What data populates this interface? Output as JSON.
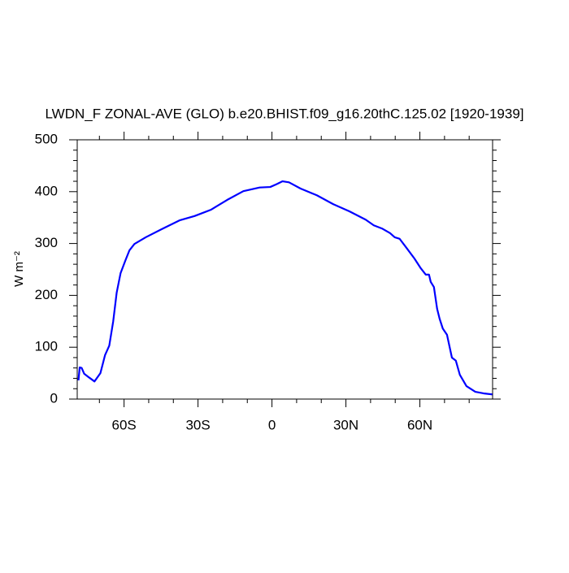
{
  "chart_data": {
    "type": "line",
    "title": "LWDN_F ZONAL-AVE (GLO) b.e20.BHIST.f09_g16.20thC.125.02 [1920-1939]",
    "ylabel": "W m⁻²",
    "series": [
      {
        "color": "#0000ff",
        "x": [
          -78.5,
          -78,
          -77.2,
          -76.2,
          -74.3,
          -72,
          -69.6,
          -67.7,
          -66,
          -64.4,
          -63,
          -61.4,
          -59.4,
          -57.8,
          -55.8,
          -51.2,
          -44.6,
          -37.3,
          -31.4,
          -24.8,
          -18.2,
          -11.6,
          -5,
          -0.7,
          1.7,
          4.3,
          6.9,
          11.6,
          18.2,
          24.8,
          31.4,
          38,
          41.3,
          44.6,
          47.9,
          49.8,
          51.8,
          54.5,
          57.8,
          60.4,
          62.4,
          63.7,
          64.4,
          65.7,
          67,
          68,
          69.3,
          71,
          73,
          74.6,
          76.2,
          78.9,
          82.5,
          85.8,
          89.4
        ],
        "values": [
          36,
          61,
          60,
          49,
          42,
          34,
          50,
          85,
          103,
          150,
          205,
          243,
          268,
          287,
          299,
          312,
          328,
          345,
          353,
          365,
          384,
          401,
          408,
          409,
          414,
          420,
          418,
          406,
          393,
          376,
          362,
          346,
          335,
          329,
          320,
          312,
          309,
          292,
          271,
          252,
          240,
          240,
          226,
          216,
          174,
          155,
          136,
          124,
          80,
          74,
          47,
          25,
          14,
          11,
          9
        ]
      }
    ],
    "xlim": [
      -79,
      89.5
    ],
    "ylim": [
      0,
      500
    ],
    "xticks": [
      {
        "value": -60,
        "label": "60S"
      },
      {
        "value": -30,
        "label": "30S"
      },
      0,
      {
        "value": 30,
        "label": "30N"
      },
      {
        "value": 60,
        "label": "60N"
      }
    ],
    "xminorticks": [
      -70,
      -50,
      -40,
      -20,
      -10,
      10,
      20,
      40,
      50,
      70,
      80
    ],
    "yticks": [
      0,
      100,
      200,
      300,
      400,
      500
    ],
    "yminorticks": [
      20,
      40,
      60,
      80,
      120,
      140,
      160,
      180,
      220,
      240,
      260,
      280,
      320,
      340,
      360,
      380,
      420,
      440,
      460,
      480
    ]
  }
}
